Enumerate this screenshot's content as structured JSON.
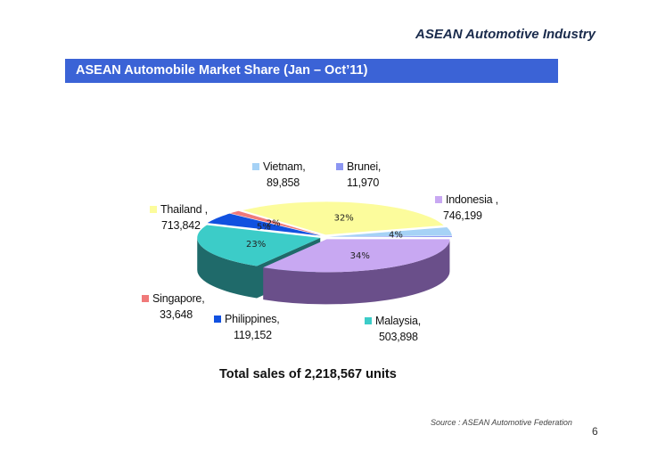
{
  "header": {
    "title": "ASEAN Automotive Industry"
  },
  "banner": {
    "title": "ASEAN Automobile Market Share (Jan – Oct’11)"
  },
  "chart_data": {
    "type": "pie",
    "style": "3d-exploded",
    "title": "ASEAN Automobile Market Share (Jan – Oct’11)",
    "slices": [
      {
        "name": "Indonesia ,",
        "value_label": "746,199",
        "value": 746199,
        "percent": 34,
        "percent_label": "34%",
        "color": "#c8a8f2",
        "side": "#6a4f8a"
      },
      {
        "name": "Malaysia,",
        "value_label": "503,898",
        "value": 503898,
        "percent": 23,
        "percent_label": "23%",
        "color": "#3cccc8",
        "side": "#1f6a6a"
      },
      {
        "name": "Philippines,",
        "value_label": "119,152",
        "value": 119152,
        "percent": 5,
        "percent_label": "5%",
        "color": "#1151e0",
        "side": "#0d2c70"
      },
      {
        "name": "Singapore,",
        "value_label": "33,648",
        "value": 33648,
        "percent": 2,
        "percent_label": "2%",
        "color": "#f07a7a",
        "side": "#8a3a3a"
      },
      {
        "name": "Thailand ,",
        "value_label": "713,842",
        "value": 713842,
        "percent": 32,
        "percent_label": "32%",
        "color": "#fcfc9c",
        "side": "#8a8a4a"
      },
      {
        "name": "Vietnam,",
        "value_label": "89,858",
        "value": 89858,
        "percent": 4,
        "percent_label": "4%",
        "color": "#a6d2f6",
        "side": "#5a7a9a"
      },
      {
        "name": "Brunei,",
        "value_label": "11,970",
        "value": 11970,
        "percent": 1,
        "percent_label": "",
        "color": "#8c96f2",
        "side": "#4a508a"
      }
    ],
    "total_label": "Total sales of  2,218,567 units"
  },
  "footer": {
    "source": "Source : ASEAN Automotive Federation",
    "page": "6"
  }
}
